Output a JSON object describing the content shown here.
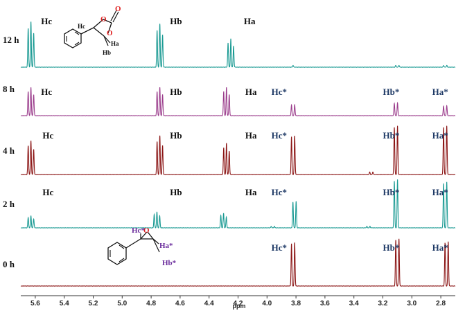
{
  "chart_data": {
    "type": "line",
    "xlabel": "ppm",
    "x_axis": {
      "range": [
        5.7,
        2.7
      ],
      "reversed": true,
      "ticks": [
        5.6,
        5.4,
        5.2,
        5.0,
        4.8,
        4.6,
        4.4,
        4.2,
        4.0,
        3.8,
        3.6,
        3.4,
        3.2,
        3.0,
        2.8
      ],
      "tick_labels": [
        "5.6",
        "5.4",
        "5.2",
        "5.0",
        "4.8",
        "4.6",
        "4.4",
        "4.2",
        "4.0",
        "3.8",
        "3.6",
        "3.4",
        "3.2",
        "3.0",
        "2.8"
      ]
    },
    "grid": false,
    "series": [
      {
        "name": "12 h",
        "color": "#1a9a93",
        "peaks": [
          {
            "shift": 5.63,
            "rel_height": 1.0,
            "multiplicity": "triplet"
          },
          {
            "shift": 4.74,
            "rel_height": 0.95,
            "multiplicity": "triplet"
          },
          {
            "shift": 4.25,
            "rel_height": 0.62,
            "multiplicity": "triplet"
          },
          {
            "shift": 3.82,
            "rel_height": 0.04,
            "multiplicity": "singlet"
          },
          {
            "shift": 3.1,
            "rel_height": 0.04,
            "multiplicity": "doublet"
          },
          {
            "shift": 2.77,
            "rel_height": 0.04,
            "multiplicity": "doublet"
          }
        ],
        "labels": [
          {
            "text": "Hc",
            "shift": 5.56
          },
          {
            "text": "Hb",
            "shift": 4.67
          },
          {
            "text": "Ha",
            "shift": 4.16
          }
        ]
      },
      {
        "name": "8 h",
        "color": "#9b3d8c",
        "peaks": [
          {
            "shift": 5.63,
            "rel_height": 0.62,
            "multiplicity": "triplet"
          },
          {
            "shift": 4.74,
            "rel_height": 0.62,
            "multiplicity": "triplet"
          },
          {
            "shift": 4.28,
            "rel_height": 0.62,
            "multiplicity": "triplet"
          },
          {
            "shift": 3.82,
            "rel_height": 0.24,
            "multiplicity": "doublet"
          },
          {
            "shift": 3.11,
            "rel_height": 0.28,
            "multiplicity": "doublet"
          },
          {
            "shift": 2.77,
            "rel_height": 0.22,
            "multiplicity": "doublet"
          }
        ],
        "labels": [
          {
            "text": "Hc",
            "shift": 5.56
          },
          {
            "text": "Hb",
            "shift": 4.67
          },
          {
            "text": "Ha",
            "shift": 4.15
          },
          {
            "text": "Hc*",
            "shift": 3.97
          },
          {
            "text": "Hb*",
            "shift": 3.2
          },
          {
            "text": "Ha*",
            "shift": 2.86
          }
        ]
      },
      {
        "name": "4 h",
        "color": "#8b1515",
        "peaks": [
          {
            "shift": 5.63,
            "rel_height": 0.68,
            "multiplicity": "triplet"
          },
          {
            "shift": 4.74,
            "rel_height": 0.78,
            "multiplicity": "triplet"
          },
          {
            "shift": 4.28,
            "rel_height": 0.63,
            "multiplicity": "triplet"
          },
          {
            "shift": 3.82,
            "rel_height": 0.78,
            "multiplicity": "doublet"
          },
          {
            "shift": 3.28,
            "rel_height": 0.05,
            "multiplicity": "doublet"
          },
          {
            "shift": 3.11,
            "rel_height": 0.98,
            "multiplicity": "doublet"
          },
          {
            "shift": 2.77,
            "rel_height": 0.98,
            "multiplicity": "doublet"
          }
        ],
        "labels": [
          {
            "text": "Hc",
            "shift": 5.55
          },
          {
            "text": "Hb",
            "shift": 4.67
          },
          {
            "text": "Ha",
            "shift": 4.15
          },
          {
            "text": "Hc*",
            "shift": 3.97
          },
          {
            "text": "Hb*",
            "shift": 3.2
          },
          {
            "text": "Ha*",
            "shift": 2.86
          }
        ]
      },
      {
        "name": "2 h",
        "color": "#1a9a93",
        "peaks": [
          {
            "shift": 5.63,
            "rel_height": 0.25,
            "multiplicity": "triplet"
          },
          {
            "shift": 4.76,
            "rel_height": 0.33,
            "multiplicity": "triplet"
          },
          {
            "shift": 4.3,
            "rel_height": 0.3,
            "multiplicity": "triplet"
          },
          {
            "shift": 3.96,
            "rel_height": 0.03,
            "multiplicity": "doublet"
          },
          {
            "shift": 3.81,
            "rel_height": 0.55,
            "multiplicity": "doublet"
          },
          {
            "shift": 3.3,
            "rel_height": 0.03,
            "multiplicity": "doublet"
          },
          {
            "shift": 3.11,
            "rel_height": 1.0,
            "multiplicity": "doublet"
          },
          {
            "shift": 2.77,
            "rel_height": 0.95,
            "multiplicity": "doublet"
          }
        ],
        "labels": [
          {
            "text": "Hc",
            "shift": 5.55
          },
          {
            "text": "Hb",
            "shift": 4.67
          },
          {
            "text": "Ha",
            "shift": 4.15
          },
          {
            "text": "Hc*",
            "shift": 3.97
          },
          {
            "text": "Hb*",
            "shift": 3.2
          },
          {
            "text": "Ha*",
            "shift": 2.86
          }
        ]
      },
      {
        "name": "0 h",
        "color": "#8b1515",
        "peaks": [
          {
            "shift": 3.82,
            "rel_height": 0.9,
            "multiplicity": "doublet"
          },
          {
            "shift": 3.1,
            "rel_height": 0.98,
            "multiplicity": "doublet"
          },
          {
            "shift": 2.76,
            "rel_height": 0.92,
            "multiplicity": "doublet"
          }
        ],
        "labels": [
          {
            "text": "Hc*",
            "shift": 3.97
          },
          {
            "text": "Hb*",
            "shift": 3.2
          },
          {
            "text": "Ha*",
            "shift": 2.86
          }
        ]
      }
    ]
  },
  "structures": {
    "carbonate": {
      "atoms": {
        "O1": "O",
        "O2": "O",
        "O3": "O",
        "Hc": "Hc",
        "Ha": "Ha",
        "Hb": "Hb"
      }
    },
    "epoxide": {
      "atoms": {
        "O": "O",
        "Hc": "Hc*",
        "Ha": "Ha*",
        "Hb": "Hb*"
      }
    }
  },
  "colors": {
    "label_black": "#111111",
    "label_starred": "#1f3a66",
    "oxygen": "#e02020",
    "epoxide_label": "#6a2c9c",
    "axis": "#333333"
  }
}
